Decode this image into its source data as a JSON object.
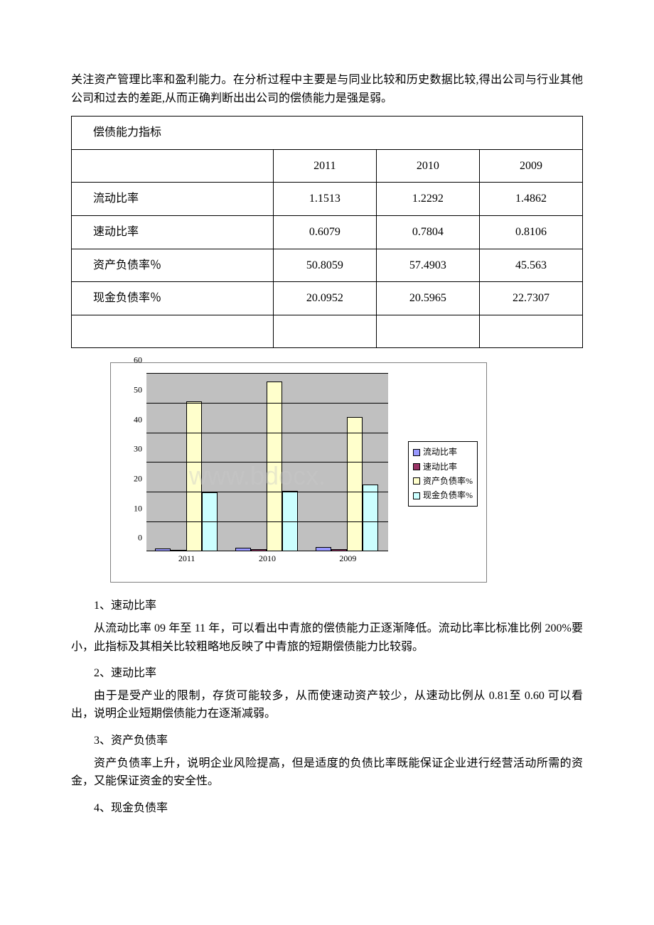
{
  "intro": "关注资产管理比率和盈利能力。在分析过程中主要是与同业比较和历史数据比较,得出公司与行业其他公司和过去的差距,从而正确判断出出公司的偿债能力是强是弱。",
  "table": {
    "title": "偿债能力指标",
    "year_headers": [
      "2011",
      "2010",
      "2009"
    ],
    "rows": [
      {
        "label": "流动比率",
        "values": [
          "1.1513",
          "1.2292",
          "1.4862"
        ]
      },
      {
        "label": "速动比率",
        "values": [
          "0.6079",
          "0.7804",
          "0.8106"
        ]
      },
      {
        "label": "资产负债率％",
        "values": [
          "50.8059",
          "57.4903",
          "45.563"
        ]
      },
      {
        "label": "现金负债率％",
        "values": [
          "20.0952",
          "20.5965",
          "22.7307"
        ]
      }
    ]
  },
  "chart": {
    "type": "bar",
    "ymax": 60,
    "ytick_step": 10,
    "yticks": [
      0,
      10,
      20,
      30,
      40,
      50,
      60
    ],
    "categories": [
      "2011",
      "2010",
      "2009"
    ],
    "series": [
      {
        "name": "流动比率",
        "color": "#9999ff",
        "values": [
          1.1513,
          1.2292,
          1.4862
        ]
      },
      {
        "name": "速动比率",
        "color": "#993366",
        "values": [
          0.6079,
          0.7804,
          0.8106
        ]
      },
      {
        "name": "资产负债率%",
        "color": "#ffffcc",
        "values": [
          50.8059,
          57.4903,
          45.563
        ]
      },
      {
        "name": "现金负债率%",
        "color": "#ccffff",
        "values": [
          20.0952,
          20.5965,
          22.7307
        ]
      }
    ],
    "plot_background": "#c0c0c0",
    "grid_color": "#000000",
    "watermark_text": "www.bdocx."
  },
  "sections": [
    {
      "heading": "1、速动比率",
      "body": "从流动比率 09 年至 11 年，可以看出中青旅的偿债能力正逐渐降低。流动比率比标准比例 200%要小，此指标及其相关比较粗略地反映了中青旅的短期偿债能力比较弱。"
    },
    {
      "heading": "2、速动比率",
      "body": "由于是受产业的限制，存货可能较多，从而使速动资产较少，从速动比例从 0.81至 0.60 可以看出，说明企业短期偿债能力在逐渐减弱。"
    },
    {
      "heading": "3、资产负债率",
      "body": "资产负债率上升，说明企业风险提高，但是适度的负债比率既能保证企业进行经营活动所需的资金，又能保证资金的安全性。"
    },
    {
      "heading": "4、现金负债率",
      "body": ""
    }
  ]
}
